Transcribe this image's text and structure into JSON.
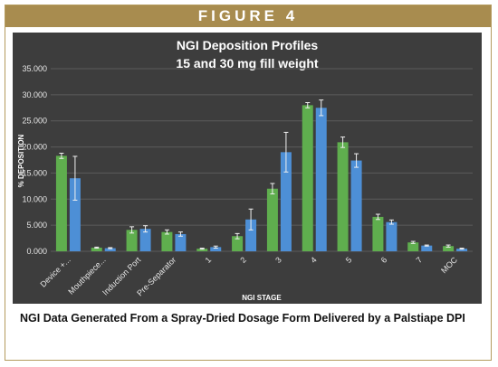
{
  "header": {
    "label": "FIGURE 4"
  },
  "caption": "NGI Data Generated From a Spray-Dried Dosage Form Delivered by a Palstiape DPI",
  "colors": {
    "background": "#3d3d3d",
    "series1": "#5fae4e",
    "series2": "#4d8fd6",
    "accent": "#a88c4f"
  },
  "chart_data": {
    "type": "bar",
    "title": "NGI Deposition Profiles",
    "subtitle": "15 and 30 mg fill weight",
    "xlabel": "NGI STAGE",
    "ylabel": "% DEPOSITION",
    "ylim": [
      0,
      35
    ],
    "yticks": [
      "0.000",
      "5.000",
      "10.000",
      "15.000",
      "20.000",
      "25.000",
      "30.000",
      "35.000"
    ],
    "grid": true,
    "categories": [
      "Device +...",
      "Mouthpiece...",
      "Induction Port",
      "Pre-Separator",
      "1",
      "2",
      "3",
      "4",
      "5",
      "6",
      "7",
      "MOC"
    ],
    "series": [
      {
        "values": [
          18.3,
          0.7,
          4.1,
          3.7,
          0.5,
          2.9,
          12.0,
          28.0,
          20.9,
          6.6,
          1.7,
          1.0
        ],
        "errors": [
          0.5,
          0.1,
          0.6,
          0.4,
          0.1,
          0.5,
          1.0,
          0.5,
          1.0,
          0.5,
          0.2,
          0.2
        ]
      },
      {
        "values": [
          14.0,
          0.6,
          4.3,
          3.3,
          0.8,
          6.1,
          19.0,
          27.5,
          17.4,
          5.6,
          1.1,
          0.5
        ],
        "errors": [
          4.2,
          0.1,
          0.6,
          0.4,
          0.2,
          2.0,
          3.8,
          1.5,
          1.3,
          0.4,
          0.1,
          0.1
        ]
      }
    ]
  }
}
